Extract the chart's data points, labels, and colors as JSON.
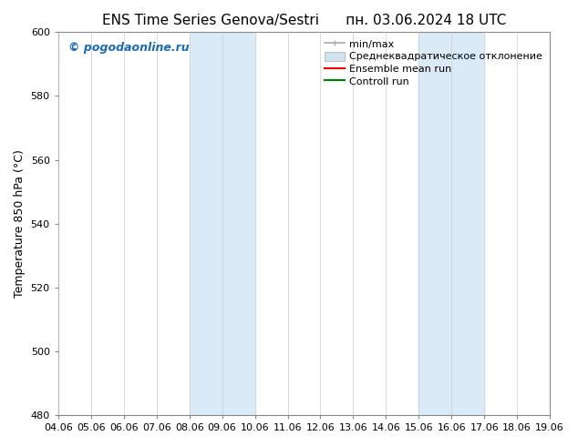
{
  "title_left": "ENS Time Series Genova/Sestri",
  "title_right": "пн. 03.06.2024 18 UTC",
  "ylabel": "Temperature 850 hPa (°C)",
  "xlim_dates": [
    "04.06",
    "05.06",
    "06.06",
    "07.06",
    "08.06",
    "09.06",
    "10.06",
    "11.06",
    "12.06",
    "13.06",
    "14.06",
    "15.06",
    "16.06",
    "17.06",
    "18.06",
    "19.06"
  ],
  "ylim": [
    480,
    600
  ],
  "yticks": [
    480,
    500,
    520,
    540,
    560,
    580,
    600
  ],
  "shaded_regions": [
    {
      "xstart": 4,
      "xend": 6
    },
    {
      "xstart": 11,
      "xend": 13
    }
  ],
  "shaded_color": "#daeaf7",
  "grid_color": "#cccccc",
  "background_color": "#ffffff",
  "watermark_text": "© pogodaonline.ru",
  "watermark_color": "#1a6bb5",
  "legend_entries": [
    {
      "label": "min/max",
      "color": "#aaaaaa"
    },
    {
      "label": "Среднеквадратическое отклонение",
      "color": "#d0e4f0"
    },
    {
      "label": "Ensemble mean run",
      "color": "red"
    },
    {
      "label": "Controll run",
      "color": "green"
    }
  ],
  "title_fontsize": 11,
  "axis_fontsize": 9,
  "tick_fontsize": 8,
  "legend_fontsize": 8
}
